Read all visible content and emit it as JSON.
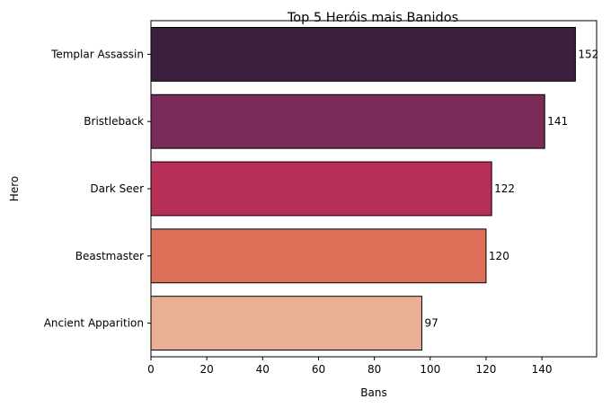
{
  "chart_data": {
    "type": "bar",
    "orientation": "horizontal",
    "title": "Top 5 Heróis mais Banidos",
    "xlabel": "Bans",
    "ylabel": "Hero",
    "categories": [
      "Templar Assassin",
      "Bristleback",
      "Dark Seer",
      "Beastmaster",
      "Ancient Apparition"
    ],
    "values": [
      152,
      141,
      122,
      120,
      97
    ],
    "colors": [
      "#3b1f3c",
      "#7a2b58",
      "#b83058",
      "#de705a",
      "#eab095"
    ],
    "xlim": [
      0,
      159.6
    ],
    "xticks": [
      0,
      20,
      40,
      60,
      80,
      100,
      120,
      140
    ],
    "grid": false,
    "data_labels": true
  }
}
